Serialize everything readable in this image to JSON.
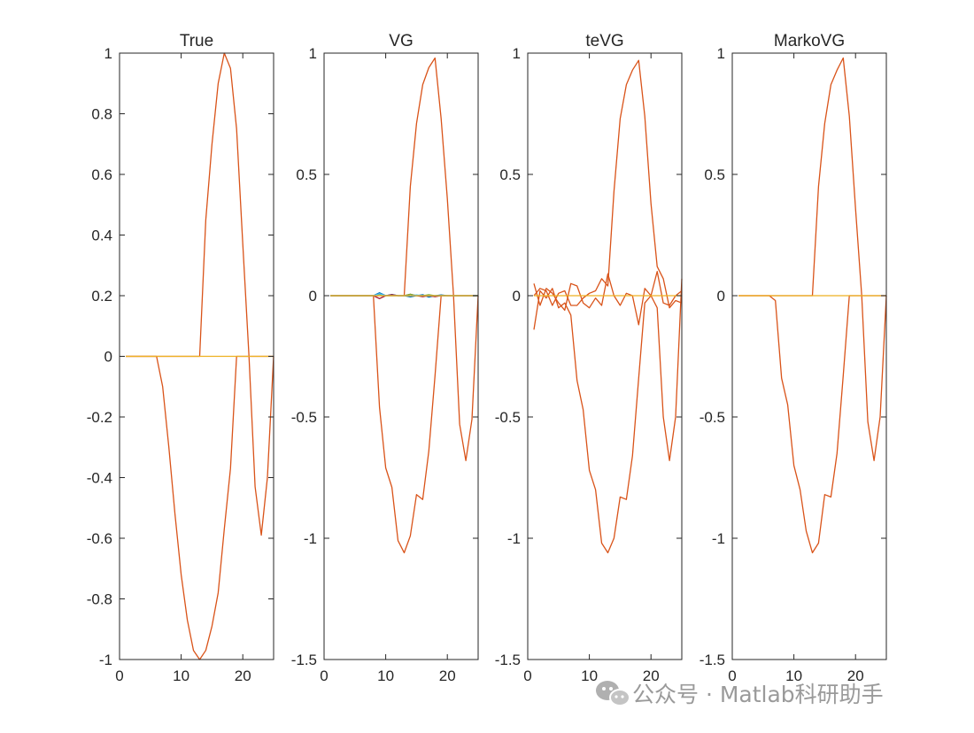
{
  "watermark": {
    "text": "公众号 · Matlab科研助手",
    "icon": "wechat-icon",
    "color": "#a6a6a6"
  },
  "colors": {
    "orange_red": "#d95319",
    "yellow": "#edb120",
    "blue": "#0072bd",
    "green": "#77ac30",
    "teal": "#4dbeee",
    "purple": "#7e2f8e",
    "dark_red": "#a2142f",
    "axis": "#262626"
  },
  "chart_data": [
    {
      "type": "line",
      "title": "True",
      "xlim": [
        0,
        25
      ],
      "ylim": [
        -1,
        1
      ],
      "xticks": [
        0,
        10,
        20
      ],
      "xtick_labels": [
        "0",
        "10",
        "20"
      ],
      "yticks": [
        -1,
        -0.8,
        -0.6,
        -0.4,
        -0.2,
        0,
        0.2,
        0.4,
        0.6,
        0.8,
        1
      ],
      "ytick_labels": [
        "-1",
        "-0.8",
        "-0.6",
        "-0.4",
        "-0.2",
        "0",
        "0.2",
        "0.4",
        "0.6",
        "0.8",
        "1"
      ],
      "grid": false,
      "series": [
        {
          "color": "#d95319",
          "x": [
            1,
            2,
            3,
            4,
            5,
            6,
            7,
            8,
            9,
            10,
            11,
            12,
            13,
            14,
            15,
            16,
            17,
            18,
            19,
            20,
            21,
            22,
            23,
            24,
            25
          ],
          "y": [
            0,
            0,
            0,
            0,
            0,
            0,
            -0.1,
            -0.3,
            -0.52,
            -0.72,
            -0.87,
            -0.97,
            -1.0,
            -0.97,
            -0.89,
            -0.78,
            -0.57,
            -0.37,
            0,
            0,
            0,
            0,
            0,
            0,
            0
          ]
        },
        {
          "color": "#d95319",
          "x": [
            1,
            2,
            3,
            4,
            5,
            6,
            7,
            8,
            9,
            10,
            11,
            12,
            13,
            14,
            15,
            16,
            17,
            18,
            19,
            20,
            21,
            22,
            23,
            24,
            25
          ],
          "y": [
            0,
            0,
            0,
            0,
            0,
            0,
            0,
            0,
            0,
            0,
            0,
            0,
            0,
            0.45,
            0.7,
            0.9,
            1.0,
            0.95,
            0.75,
            0.37,
            0,
            -0.43,
            -0.59,
            -0.4,
            0
          ]
        },
        {
          "color": "#edb120",
          "x": [
            1,
            25
          ],
          "y": [
            0,
            0
          ]
        }
      ]
    },
    {
      "type": "line",
      "title": "VG",
      "xlim": [
        0,
        25
      ],
      "ylim": [
        -1.5,
        1
      ],
      "xticks": [
        0,
        10,
        20
      ],
      "xtick_labels": [
        "0",
        "10",
        "20"
      ],
      "yticks": [
        -1.5,
        -1,
        -0.5,
        0,
        0.5,
        1
      ],
      "ytick_labels": [
        "-1.5",
        "-1",
        "-0.5",
        "0",
        "0.5",
        "1"
      ],
      "grid": false,
      "series": [
        {
          "color": "#d95319",
          "x": [
            1,
            2,
            3,
            4,
            5,
            6,
            7,
            8,
            9,
            10,
            11,
            12,
            13,
            14,
            15,
            16,
            17,
            18,
            19,
            20,
            21,
            22,
            23,
            24,
            25
          ],
          "y": [
            0,
            0,
            0,
            0,
            0,
            0,
            0,
            0,
            -0.46,
            -0.71,
            -0.79,
            -1.01,
            -1.06,
            -0.99,
            -0.82,
            -0.84,
            -0.64,
            -0.33,
            0,
            0,
            0,
            0,
            0,
            0,
            0
          ]
        },
        {
          "color": "#d95319",
          "x": [
            1,
            2,
            3,
            4,
            5,
            6,
            7,
            8,
            9,
            10,
            11,
            12,
            13,
            14,
            15,
            16,
            17,
            18,
            19,
            20,
            21,
            22,
            23,
            24,
            25
          ],
          "y": [
            0,
            0,
            0,
            0,
            0,
            0,
            0,
            0,
            0,
            0,
            0,
            0,
            0,
            0.45,
            0.71,
            0.87,
            0.94,
            0.98,
            0.73,
            0.4,
            0,
            -0.53,
            -0.68,
            -0.51,
            0
          ]
        },
        {
          "color": "#0072bd",
          "x": [
            1,
            6,
            7,
            8,
            9,
            10,
            11,
            12,
            13,
            14,
            15,
            16,
            17,
            18,
            19,
            20,
            25
          ],
          "y": [
            0,
            0,
            0,
            0,
            0.012,
            0,
            0.005,
            0,
            0,
            -0.005,
            0,
            0.004,
            -0.006,
            0,
            0.003,
            0,
            0
          ]
        },
        {
          "color": "#a2142f",
          "x": [
            1,
            6,
            7,
            8,
            9,
            10,
            11,
            12,
            13,
            14,
            15,
            16,
            17,
            18,
            19,
            20,
            25
          ],
          "y": [
            0,
            0,
            0,
            0,
            -0.012,
            0,
            0.004,
            0,
            0,
            0.006,
            0,
            -0.004,
            0,
            -0.004,
            0,
            0,
            0
          ]
        },
        {
          "color": "#77ac30",
          "x": [
            1,
            6,
            7,
            8,
            9,
            10,
            11,
            12,
            13,
            14,
            15,
            16,
            17,
            18,
            19,
            20,
            25
          ],
          "y": [
            0,
            0,
            0,
            0,
            0.006,
            0,
            0,
            0,
            0,
            0.006,
            0,
            0,
            0.004,
            0,
            0,
            0,
            0
          ]
        },
        {
          "color": "#4dbeee",
          "x": [
            1,
            6,
            7,
            8,
            9,
            10,
            11,
            12,
            13,
            14,
            15,
            16,
            17,
            18,
            19,
            20,
            25
          ],
          "y": [
            0,
            0,
            0,
            0,
            0.008,
            0,
            0,
            0,
            0,
            0,
            0.003,
            0,
            0,
            0,
            0,
            0,
            0
          ]
        },
        {
          "color": "#edb120",
          "x": [
            1,
            25
          ],
          "y": [
            0,
            0
          ]
        }
      ]
    },
    {
      "type": "line",
      "title": "teVG",
      "xlim": [
        0,
        25
      ],
      "ylim": [
        -1.5,
        1
      ],
      "xticks": [
        0,
        10,
        20
      ],
      "xtick_labels": [
        "0",
        "10",
        "20"
      ],
      "yticks": [
        -1.5,
        -1,
        -0.5,
        0,
        0.5,
        1
      ],
      "ytick_labels": [
        "-1.5",
        "-1",
        "-0.5",
        "0",
        "0.5",
        "1"
      ],
      "grid": false,
      "series": [
        {
          "color": "#d95319",
          "x": [
            1,
            2,
            3,
            4,
            5,
            6,
            7,
            8,
            9,
            10,
            11,
            12,
            13,
            14,
            15,
            16,
            17,
            18,
            19,
            20,
            21,
            22,
            23,
            24,
            25
          ],
          "y": [
            -0.14,
            0.02,
            -0.01,
            0.03,
            -0.05,
            -0.03,
            -0.08,
            -0.35,
            -0.47,
            -0.72,
            -0.8,
            -1.02,
            -1.06,
            -1.0,
            -0.83,
            -0.84,
            -0.66,
            -0.34,
            -0.03,
            0,
            -0.05,
            -0.5,
            -0.68,
            -0.5,
            0.07
          ]
        },
        {
          "color": "#d95319",
          "x": [
            1,
            2,
            3,
            4,
            5,
            6,
            7,
            8,
            9,
            10,
            11,
            12,
            13,
            14,
            15,
            16,
            17,
            18,
            19,
            20,
            21,
            22,
            23,
            24,
            25
          ],
          "y": [
            0,
            0.03,
            0.02,
            -0.04,
            0.01,
            0.02,
            -0.04,
            -0.04,
            -0.01,
            0.01,
            0.02,
            0.07,
            0.04,
            0.43,
            0.73,
            0.87,
            0.93,
            0.97,
            0.74,
            0.38,
            0.12,
            0.07,
            -0.05,
            -0.02,
            -0.03
          ]
        },
        {
          "color": "#d95319",
          "x": [
            1,
            2,
            3,
            4,
            5,
            6,
            7,
            8,
            9,
            10,
            11,
            12,
            13,
            14,
            15,
            16,
            17,
            18,
            19,
            20,
            21,
            22,
            23,
            24,
            25
          ],
          "y": [
            0.05,
            -0.04,
            0.03,
            0.01,
            -0.03,
            -0.06,
            0.05,
            0.04,
            -0.03,
            -0.05,
            -0.01,
            -0.04,
            0.09,
            0,
            -0.04,
            0.01,
            0,
            -0.12,
            0.03,
            0,
            0.1,
            -0.03,
            -0.04,
            0,
            0.02
          ]
        },
        {
          "color": "#edb120",
          "x": [
            1,
            25
          ],
          "y": [
            0,
            0
          ]
        }
      ]
    },
    {
      "type": "line",
      "title": "MarkoVG",
      "xlim": [
        0,
        25
      ],
      "ylim": [
        -1.5,
        1
      ],
      "xticks": [
        0,
        10,
        20
      ],
      "xtick_labels": [
        "0",
        "10",
        "20"
      ],
      "yticks": [
        -1.5,
        -1,
        -0.5,
        0,
        0.5,
        1
      ],
      "ytick_labels": [
        "-1.5",
        "-1",
        "-0.5",
        "0",
        "0.5",
        "1"
      ],
      "grid": false,
      "series": [
        {
          "color": "#d95319",
          "x": [
            1,
            2,
            3,
            4,
            5,
            6,
            7,
            8,
            9,
            10,
            11,
            12,
            13,
            14,
            15,
            16,
            17,
            18,
            19,
            20,
            21,
            22,
            23,
            24,
            25
          ],
          "y": [
            0,
            0,
            0,
            0,
            0,
            0,
            -0.02,
            -0.34,
            -0.45,
            -0.7,
            -0.8,
            -0.97,
            -1.06,
            -1.02,
            -0.82,
            -0.83,
            -0.65,
            -0.33,
            0,
            0,
            0,
            0,
            0,
            0,
            0
          ]
        },
        {
          "color": "#d95319",
          "x": [
            1,
            2,
            3,
            4,
            5,
            6,
            7,
            8,
            9,
            10,
            11,
            12,
            13,
            14,
            15,
            16,
            17,
            18,
            19,
            20,
            21,
            22,
            23,
            24,
            25
          ],
          "y": [
            0,
            0,
            0,
            0,
            0,
            0,
            0,
            0,
            0,
            0,
            0,
            0,
            0,
            0.45,
            0.71,
            0.87,
            0.93,
            0.98,
            0.74,
            0.36,
            0,
            -0.52,
            -0.68,
            -0.5,
            0
          ]
        },
        {
          "color": "#edb120",
          "x": [
            1,
            25
          ],
          "y": [
            0,
            0
          ]
        }
      ]
    }
  ]
}
